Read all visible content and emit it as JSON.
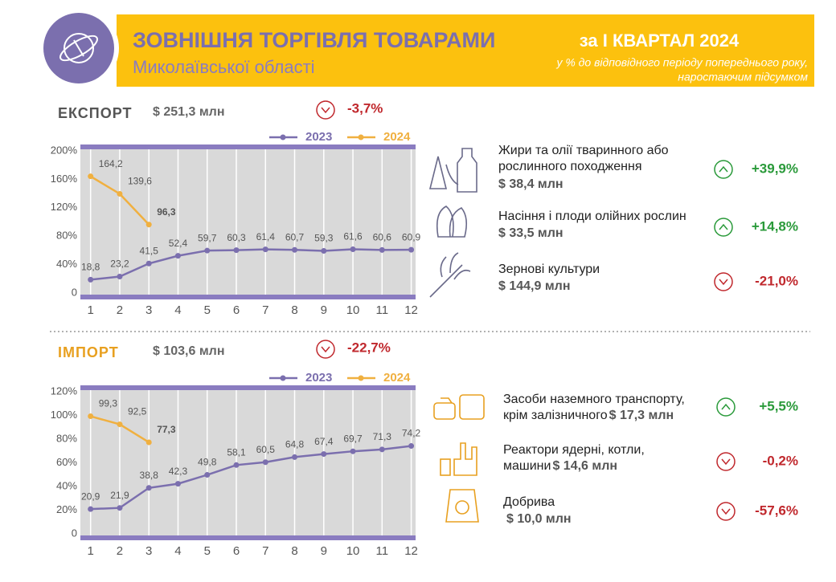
{
  "header": {
    "title": "ЗОВНІШНЯ ТОРГІВЛЯ ТОВАРАМИ",
    "subtitle": "Миколаївської області",
    "period": "за І КВАРТАЛ 2024",
    "note": [
      "у % до відповідного періоду попереднього року,",
      "наростаючим підсумком"
    ]
  },
  "sections": [
    {
      "label": "ЕКСПОРТ",
      "total": "$ 251,3 млн",
      "change": "-3,7%",
      "items": [
        {
          "name": [
            "Жири та олії тваринного або",
            "рослинного походження"
          ],
          "value": "$ 38,4 млн",
          "change": "+39,9%"
        },
        {
          "name": [
            "Насіння і плоди олійних рослин"
          ],
          "value": "$ 33,5 млн",
          "change": "+14,8%"
        },
        {
          "name": [
            "Зернові культури"
          ],
          "value": "$ 144,9 млн",
          "change": "-21,0%"
        }
      ]
    },
    {
      "label": "ІМПОРТ",
      "total": "$ 103,6 млн",
      "change": "-22,7%",
      "items": [
        {
          "name": [
            "Засоби наземного транспорту,",
            "крім залізничного"
          ],
          "value": "$ 17,3 млн",
          "change": "+5,5%"
        },
        {
          "name": [
            "Реактори ядерні, котли,",
            "машини"
          ],
          "value": "$ 14,6 млн",
          "change": "-0,2%"
        },
        {
          "name": [
            "Добрива"
          ],
          "value": "$ 10,0 млн",
          "change": "-57,6%"
        }
      ]
    }
  ],
  "chart_data": [
    {
      "type": "line",
      "x": [
        1,
        2,
        3,
        4,
        5,
        6,
        7,
        8,
        9,
        10,
        11,
        12
      ],
      "xlim": [
        0.65,
        12.15
      ],
      "xticks": [
        1,
        2,
        3,
        4,
        5,
        6,
        7,
        8,
        9,
        10,
        11,
        12
      ],
      "ylim": [
        0,
        200
      ],
      "yticks": [
        0,
        {
          "value": 40,
          "label": "40%"
        },
        {
          "value": 80,
          "label": "80%"
        },
        {
          "value": 120,
          "label": "120%"
        },
        {
          "value": 160,
          "label": "160%"
        },
        {
          "value": 200,
          "label": "200%"
        }
      ],
      "series": [
        {
          "name": "2023",
          "color": "#7b6fae",
          "values": [
            18.8,
            23.2,
            41.5,
            52.4,
            59.7,
            60.3,
            61.4,
            60.7,
            59.3,
            61.6,
            60.6,
            60.9
          ],
          "value_labels": [
            "18,8",
            "23,2",
            "41,5",
            "52,4",
            "59,7",
            "60,3",
            "61,4",
            "60,7",
            "59,3",
            "61,6",
            "60,6",
            "60,9"
          ]
        },
        {
          "name": "2024",
          "color": "#f0b040",
          "values": [
            164.2,
            139.6,
            96.3,
            null,
            null,
            null,
            null,
            null,
            null,
            null,
            null,
            null
          ],
          "value_labels": [
            "164,2",
            "139,6",
            "96,3",
            null,
            null,
            null,
            null,
            null,
            null,
            null,
            null,
            null
          ]
        }
      ]
    },
    {
      "type": "line",
      "x": [
        1,
        2,
        3,
        4,
        5,
        6,
        7,
        8,
        9,
        10,
        11,
        12
      ],
      "xlim": [
        0.65,
        12.15
      ],
      "xticks": [
        1,
        2,
        3,
        4,
        5,
        6,
        7,
        8,
        9,
        10,
        11,
        12
      ],
      "ylim": [
        0,
        120
      ],
      "yticks": [
        0,
        {
          "value": 20,
          "label": "20%"
        },
        {
          "value": 40,
          "label": "40%"
        },
        {
          "value": 60,
          "label": "60%"
        },
        {
          "value": 80,
          "label": "80%"
        },
        {
          "value": 100,
          "label": "100%"
        },
        {
          "value": 120,
          "label": "120%"
        }
      ],
      "series": [
        {
          "name": "2023",
          "color": "#7b6fae",
          "values": [
            20.9,
            21.9,
            38.8,
            42.3,
            49.8,
            58.1,
            60.5,
            64.8,
            67.4,
            69.7,
            71.3,
            74.2
          ],
          "value_labels": [
            "20,9",
            "21,9",
            "38,8",
            "42,3",
            "49,8",
            "58,1",
            "60,5",
            "64,8",
            "67,4",
            "69,7",
            "71,3",
            "74,2"
          ]
        },
        {
          "name": "2024",
          "color": "#f0b040",
          "values": [
            99.3,
            92.5,
            77.3,
            null,
            null,
            null,
            null,
            null,
            null,
            null,
            null,
            null
          ],
          "value_labels": [
            "99,3",
            "92,5",
            "77,3",
            null,
            null,
            null,
            null,
            null,
            null,
            null,
            null,
            null
          ]
        }
      ]
    }
  ]
}
